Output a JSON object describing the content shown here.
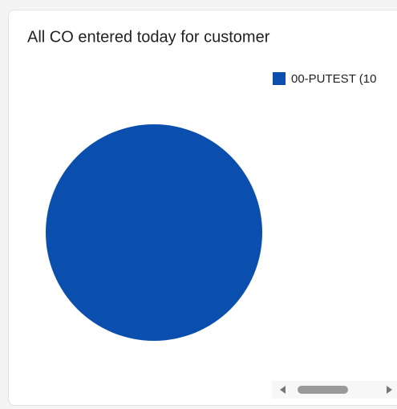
{
  "chart_data": {
    "type": "pie",
    "title": "All CO entered today for customer",
    "categories": [
      "00-PUTEST (10"
    ],
    "values": [
      100
    ],
    "colors": [
      "#0a4fae"
    ],
    "legend": "top-right"
  }
}
